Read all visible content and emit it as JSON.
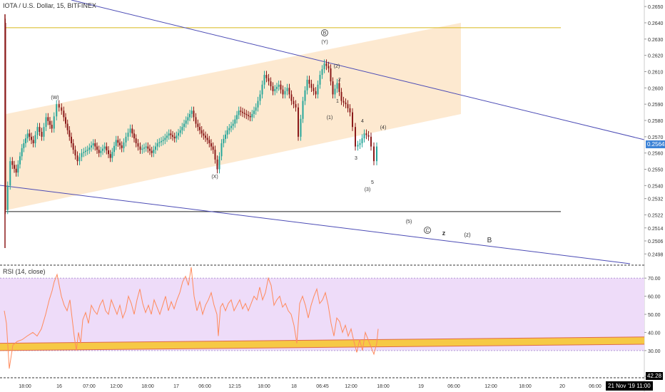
{
  "header": {
    "title": "IOTA / U.S. Dollar, 15, BITFINEX",
    "rsi_title": "RSI (14, close)",
    "date_stamp": "21 Nov '19  11:00"
  },
  "colors": {
    "background": "#ffffff",
    "candle_up": "#26a69a",
    "candle_down": "#8b1a1a",
    "channel_fill": "#fde3c4",
    "resistance": "#d8b91a",
    "trendline": "#4b4bb5",
    "support_line": "#222222",
    "rsi_bg": "#eedcf9",
    "rsi_line": "#ff8a5c",
    "rsi_band_fill": "#f6c945",
    "rsi_band_edge": "#e06a4a",
    "price_tag": "#3d83d6"
  },
  "chart_data": [
    {
      "type": "candlestick",
      "title": "IOTA / U.S. Dollar, 15, BITFINEX",
      "y_axis_side": "right",
      "ylim": [
        0.2492,
        0.2654
      ],
      "y_ticks": [
        "0.2650",
        "0.2640",
        "0.2630",
        "0.2620",
        "0.2610",
        "0.2600",
        "0.2590",
        "0.2580",
        "0.2570",
        "0.2560",
        "0.2550",
        "0.2540",
        "0.2532",
        "0.2522",
        "0.2514",
        "0.2506",
        "0.2498"
      ],
      "x_ticks": [
        "18:00",
        "16",
        "07:00",
        "12:00",
        "18:00",
        "17",
        "06:00",
        "12:15",
        "18:00",
        "18",
        "06:45",
        "12:00",
        "18:00",
        "19",
        "06:00",
        "12:00",
        "18:00",
        "20",
        "06:00"
      ],
      "last_price": "0.2564",
      "horizontal_levels": [
        0.2637,
        0.2524
      ],
      "price_path": [
        [
          0,
          0.264
        ],
        [
          3,
          0.2525
        ],
        [
          10,
          0.2555
        ],
        [
          18,
          0.2548
        ],
        [
          26,
          0.2563
        ],
        [
          34,
          0.2572
        ],
        [
          42,
          0.2566
        ],
        [
          48,
          0.2576
        ],
        [
          54,
          0.257
        ],
        [
          60,
          0.2582
        ],
        [
          68,
          0.2575
        ],
        [
          75,
          0.259
        ],
        [
          82,
          0.2586
        ],
        [
          90,
          0.2574
        ],
        [
          98,
          0.2562
        ],
        [
          104,
          0.2555
        ],
        [
          110,
          0.256
        ],
        [
          118,
          0.2562
        ],
        [
          126,
          0.2566
        ],
        [
          134,
          0.256
        ],
        [
          142,
          0.2564
        ],
        [
          150,
          0.2557
        ],
        [
          158,
          0.2568
        ],
        [
          166,
          0.2563
        ],
        [
          172,
          0.257
        ],
        [
          178,
          0.2575
        ],
        [
          186,
          0.2566
        ],
        [
          192,
          0.2562
        ],
        [
          200,
          0.2564
        ],
        [
          208,
          0.256
        ],
        [
          216,
          0.2566
        ],
        [
          224,
          0.2568
        ],
        [
          232,
          0.2572
        ],
        [
          240,
          0.2569
        ],
        [
          248,
          0.2574
        ],
        [
          256,
          0.258
        ],
        [
          264,
          0.2586
        ],
        [
          270,
          0.2578
        ],
        [
          278,
          0.2572
        ],
        [
          286,
          0.2568
        ],
        [
          294,
          0.2562
        ],
        [
          300,
          0.255
        ],
        [
          306,
          0.2566
        ],
        [
          314,
          0.2574
        ],
        [
          322,
          0.2578
        ],
        [
          330,
          0.2586
        ],
        [
          338,
          0.2584
        ],
        [
          346,
          0.2582
        ],
        [
          354,
          0.2588
        ],
        [
          360,
          0.2596
        ],
        [
          366,
          0.2608
        ],
        [
          372,
          0.2604
        ],
        [
          378,
          0.2598
        ],
        [
          386,
          0.2602
        ],
        [
          392,
          0.2596
        ],
        [
          398,
          0.26
        ],
        [
          404,
          0.2592
        ],
        [
          410,
          0.2588
        ],
        [
          414,
          0.257
        ],
        [
          420,
          0.2592
        ],
        [
          426,
          0.2605
        ],
        [
          432,
          0.26
        ],
        [
          438,
          0.2596
        ],
        [
          444,
          0.2608
        ],
        [
          450,
          0.2615
        ],
        [
          456,
          0.2612
        ],
        [
          462,
          0.2596
        ],
        [
          468,
          0.2603
        ],
        [
          474,
          0.2592
        ],
        [
          480,
          0.259
        ],
        [
          486,
          0.2585
        ],
        [
          490,
          0.2576
        ],
        [
          494,
          0.2564
        ],
        [
          500,
          0.2566
        ],
        [
          506,
          0.2572
        ],
        [
          512,
          0.257
        ],
        [
          516,
          0.2564
        ],
        [
          520,
          0.2555
        ],
        [
          524,
          0.2564
        ]
      ]
    },
    {
      "type": "line",
      "title": "RSI (14, close)",
      "y_axis_side": "right",
      "ylim": [
        15.76,
        76.0
      ],
      "y_ticks": [
        "70.00",
        "60.00",
        "50.00",
        "40.00",
        "30.00",
        "15.76"
      ],
      "band_levels": [
        70,
        30
      ],
      "last_value": "42.28",
      "values": [
        [
          0,
          52
        ],
        [
          3,
          45
        ],
        [
          7,
          20
        ],
        [
          12,
          33
        ],
        [
          18,
          35
        ],
        [
          25,
          36
        ],
        [
          32,
          38
        ],
        [
          40,
          40
        ],
        [
          46,
          38
        ],
        [
          52,
          42
        ],
        [
          58,
          50
        ],
        [
          63,
          58
        ],
        [
          67,
          63
        ],
        [
          70,
          68
        ],
        [
          74,
          72
        ],
        [
          77,
          66
        ],
        [
          80,
          60
        ],
        [
          84,
          55
        ],
        [
          88,
          52
        ],
        [
          92,
          58
        ],
        [
          95,
          48
        ],
        [
          98,
          38
        ],
        [
          101,
          30
        ],
        [
          104,
          40
        ],
        [
          107,
          34
        ],
        [
          110,
          47
        ],
        [
          114,
          51
        ],
        [
          118,
          45
        ],
        [
          122,
          55
        ],
        [
          126,
          52
        ],
        [
          130,
          50
        ],
        [
          134,
          55
        ],
        [
          138,
          58
        ],
        [
          142,
          52
        ],
        [
          146,
          50
        ],
        [
          150,
          58
        ],
        [
          154,
          54
        ],
        [
          158,
          50
        ],
        [
          162,
          55
        ],
        [
          166,
          48
        ],
        [
          170,
          52
        ],
        [
          174,
          60
        ],
        [
          178,
          56
        ],
        [
          182,
          50
        ],
        [
          186,
          58
        ],
        [
          190,
          64
        ],
        [
          194,
          56
        ],
        [
          198,
          51
        ],
        [
          202,
          55
        ],
        [
          206,
          50
        ],
        [
          210,
          58
        ],
        [
          214,
          54
        ],
        [
          218,
          50
        ],
        [
          222,
          55
        ],
        [
          226,
          60
        ],
        [
          230,
          52
        ],
        [
          234,
          57
        ],
        [
          238,
          53
        ],
        [
          242,
          58
        ],
        [
          246,
          62
        ],
        [
          250,
          68
        ],
        [
          254,
          71
        ],
        [
          258,
          66
        ],
        [
          262,
          76
        ],
        [
          266,
          60
        ],
        [
          270,
          52
        ],
        [
          274,
          57
        ],
        [
          278,
          50
        ],
        [
          282,
          55
        ],
        [
          286,
          58
        ],
        [
          290,
          62
        ],
        [
          294,
          55
        ],
        [
          298,
          50
        ],
        [
          300,
          38
        ],
        [
          303,
          54
        ],
        [
          306,
          56
        ],
        [
          310,
          52
        ],
        [
          314,
          56
        ],
        [
          318,
          58
        ],
        [
          322,
          52
        ],
        [
          326,
          55
        ],
        [
          330,
          58
        ],
        [
          334,
          53
        ],
        [
          338,
          56
        ],
        [
          342,
          52
        ],
        [
          346,
          56
        ],
        [
          350,
          60
        ],
        [
          354,
          58
        ],
        [
          358,
          65
        ],
        [
          362,
          58
        ],
        [
          366,
          62
        ],
        [
          370,
          70
        ],
        [
          374,
          66
        ],
        [
          378,
          55
        ],
        [
          382,
          58
        ],
        [
          386,
          60
        ],
        [
          390,
          54
        ],
        [
          394,
          56
        ],
        [
          398,
          52
        ],
        [
          402,
          50
        ],
        [
          406,
          44
        ],
        [
          410,
          34
        ],
        [
          414,
          56
        ],
        [
          418,
          60
        ],
        [
          422,
          55
        ],
        [
          426,
          48
        ],
        [
          430,
          55
        ],
        [
          434,
          60
        ],
        [
          438,
          64
        ],
        [
          442,
          56
        ],
        [
          446,
          58
        ],
        [
          450,
          62
        ],
        [
          454,
          55
        ],
        [
          458,
          45
        ],
        [
          462,
          38
        ],
        [
          466,
          48
        ],
        [
          470,
          46
        ],
        [
          474,
          40
        ],
        [
          478,
          44
        ],
        [
          482,
          38
        ],
        [
          486,
          42
        ],
        [
          490,
          35
        ],
        [
          494,
          29
        ],
        [
          498,
          36
        ],
        [
          502,
          30
        ],
        [
          506,
          40
        ],
        [
          510,
          36
        ],
        [
          514,
          32
        ],
        [
          518,
          28
        ],
        [
          522,
          34
        ],
        [
          524,
          42
        ]
      ]
    }
  ],
  "labels": {
    "W": "(W)",
    "X": "(X)",
    "Y": "(Y)",
    "B_circle": "B",
    "C_circle": "C",
    "wave1": "(1)",
    "wave2": "(2)",
    "wave3": "(3)",
    "wave4": "(4)",
    "wave5": "(5)",
    "sub1": "1",
    "sub2": "2",
    "sub3": "3",
    "sub4": "4",
    "sub5": "5",
    "z_small": "z",
    "z_paren": "(z)",
    "B_big": "B"
  }
}
